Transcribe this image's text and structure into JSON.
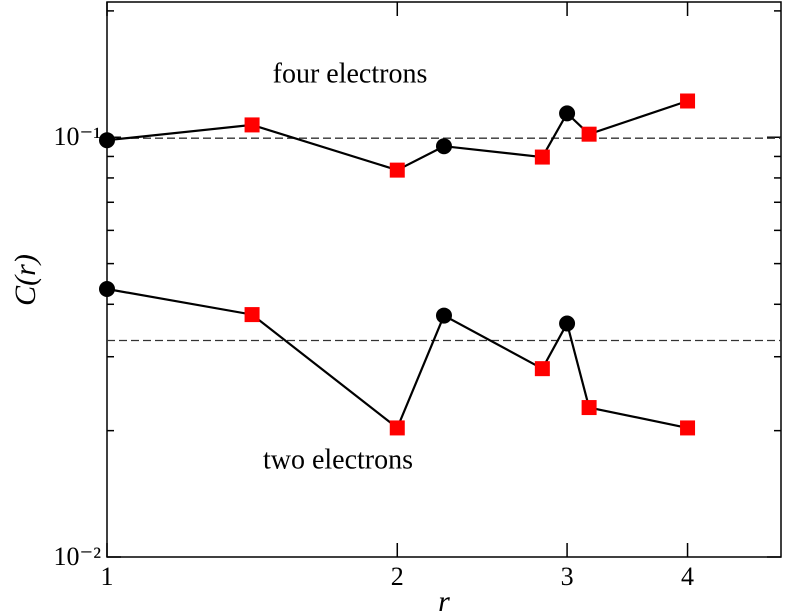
{
  "chart_data": {
    "type": "line",
    "xlabel": "r",
    "ylabel": "C(r)",
    "xlog": true,
    "ylog": true,
    "xlim": [
      1,
      5
    ],
    "ylim": [
      0.01,
      0.21
    ],
    "xticks": [
      1,
      2,
      3,
      4
    ],
    "yticks": [
      {
        "value": 0.01,
        "label": "10⁻²"
      },
      {
        "value": 0.1,
        "label": "10⁻¹"
      }
    ],
    "yminorticks": [
      0.02,
      0.03,
      0.04,
      0.05,
      0.06,
      0.07,
      0.08,
      0.09,
      0.2
    ],
    "x": [
      1,
      1.414,
      2,
      2.236,
      2.828,
      3,
      3.162,
      4
    ],
    "marker_shapes": [
      "circle",
      "square",
      "square",
      "circle",
      "square",
      "circle",
      "square",
      "square"
    ],
    "marker_colors": [
      "#000000",
      "#ff0000",
      "#ff0000",
      "#000000",
      "#ff0000",
      "#000000",
      "#ff0000",
      "#ff0000"
    ],
    "line_color": "#000000",
    "series": [
      {
        "name": "four electrons",
        "values": [
          0.0984,
          0.107,
          0.0835,
          0.0952,
          0.0897,
          0.114,
          0.1017,
          0.122
        ]
      },
      {
        "name": "two electrons",
        "values": [
          0.0435,
          0.0378,
          0.0203,
          0.0376,
          0.0281,
          0.036,
          0.0227,
          0.0203
        ]
      }
    ],
    "reference_lines": [
      0.0995,
      0.0328
    ]
  }
}
